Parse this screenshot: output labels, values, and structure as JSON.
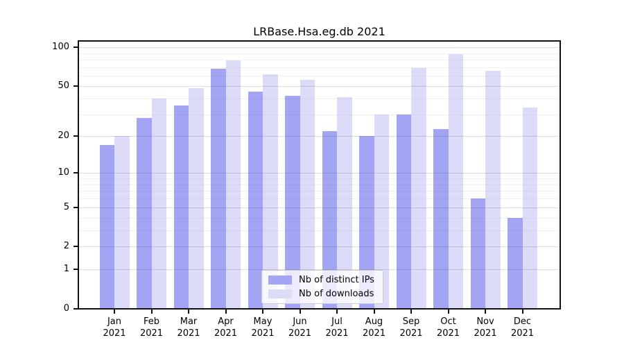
{
  "title": "LRBase.Hsa.eg.db 2021",
  "legend": {
    "items": [
      {
        "label": "Nb of distinct IPs",
        "color": "#a4a4f4"
      },
      {
        "label": "Nb of downloads",
        "color": "#dcdcf8"
      }
    ]
  },
  "chart_data": {
    "type": "bar",
    "title": "LRBase.Hsa.eg.db 2021",
    "y_scale": "log1p",
    "grid": true,
    "legend_position": "bottom-center-inside",
    "categories": [
      "Jan",
      "Feb",
      "Mar",
      "Apr",
      "May",
      "Jun",
      "Jul",
      "Aug",
      "Sep",
      "Oct",
      "Nov",
      "Dec"
    ],
    "category_year_label": "2021",
    "series": [
      {
        "name": "Nb of distinct IPs",
        "color": "#a4a4f4",
        "values": [
          17,
          28,
          35,
          68,
          45,
          42,
          22,
          20,
          30,
          23,
          6,
          4
        ]
      },
      {
        "name": "Nb of downloads",
        "color": "#dcdcf8",
        "values": [
          20,
          40,
          48,
          79,
          62,
          56,
          41,
          30,
          69,
          89,
          66,
          34
        ]
      }
    ],
    "y_ticks": [
      0,
      1,
      2,
      5,
      10,
      20,
      50,
      100
    ],
    "y_minor_gridlines": [
      3,
      4,
      6,
      7,
      8,
      9,
      30,
      40,
      60,
      70,
      80,
      90
    ],
    "ylim": [
      0,
      112
    ]
  }
}
